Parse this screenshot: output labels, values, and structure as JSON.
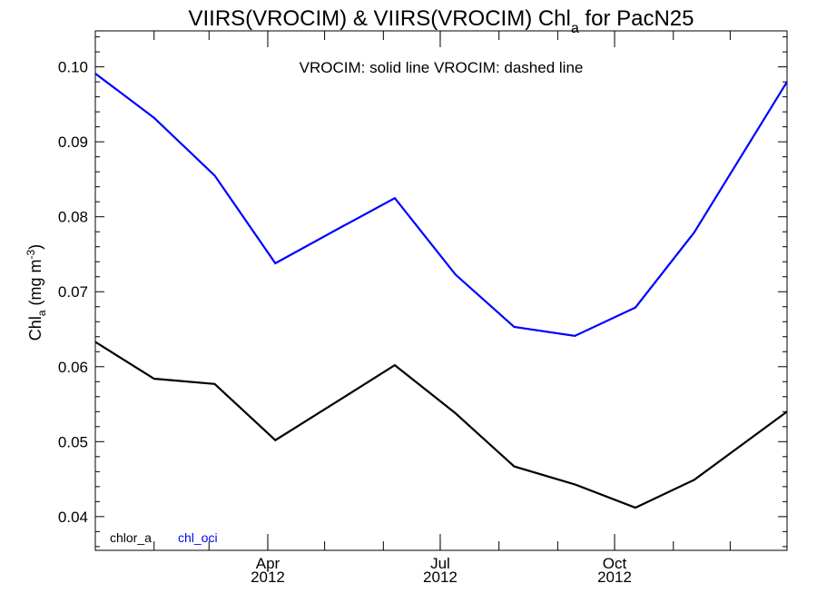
{
  "chart_data": {
    "type": "line",
    "title": "VIIRS(VROCIM) & VIIRS(VROCIM)  Chl",
    "title_sub": "a",
    "title_tail": " for PacN25",
    "ylabel": "Chl",
    "ylabel_sub": "a",
    "ylabel_units": " (mg m",
    "ylabel_sup": "-3",
    "ylabel_close": ")",
    "annotation": "VROCIM: solid line   VROCIM: dashed line",
    "ylim": [
      0.0355,
      0.1048
    ],
    "yticks": [
      {
        "value": 0.04,
        "label": "0.04"
      },
      {
        "value": 0.05,
        "label": "0.05"
      },
      {
        "value": 0.06,
        "label": "0.06"
      },
      {
        "value": 0.07,
        "label": "0.07"
      },
      {
        "value": 0.08,
        "label": "0.08"
      },
      {
        "value": 0.09,
        "label": "0.09"
      },
      {
        "value": 0.1,
        "label": "0.10"
      }
    ],
    "xlim": [
      "2012-01-01",
      "2012-12-31"
    ],
    "xticks": [
      {
        "date": "2012-04-01",
        "label": "Apr",
        "year": "2012"
      },
      {
        "date": "2012-07-01",
        "label": "Jul",
        "year": "2012"
      },
      {
        "date": "2012-10-01",
        "label": "Oct",
        "year": "2012"
      }
    ],
    "series": [
      {
        "name": "chlor_a",
        "color": "#000000",
        "x": [
          "2012-01-01",
          "2012-02-01",
          "2012-03-04",
          "2012-04-05",
          "2012-05-06",
          "2012-06-07",
          "2012-07-09",
          "2012-08-09",
          "2012-09-10",
          "2012-10-12",
          "2012-11-12",
          "2012-12-31"
        ],
        "y": [
          0.0633,
          0.0584,
          0.0577,
          0.0502,
          0.0551,
          0.0602,
          0.0538,
          0.0467,
          0.0443,
          0.0412,
          0.0449,
          0.054
        ]
      },
      {
        "name": "chl_oci",
        "color": "#0000ff",
        "x": [
          "2012-01-01",
          "2012-02-01",
          "2012-03-04",
          "2012-04-05",
          "2012-05-06",
          "2012-06-07",
          "2012-07-09",
          "2012-08-09",
          "2012-09-10",
          "2012-10-12",
          "2012-11-12",
          "2012-12-31"
        ],
        "y": [
          0.0991,
          0.0932,
          0.0855,
          0.0738,
          0.0781,
          0.0825,
          0.0723,
          0.0653,
          0.0641,
          0.0679,
          0.0779,
          0.098
        ]
      }
    ],
    "legend_position": "bottom-left"
  }
}
